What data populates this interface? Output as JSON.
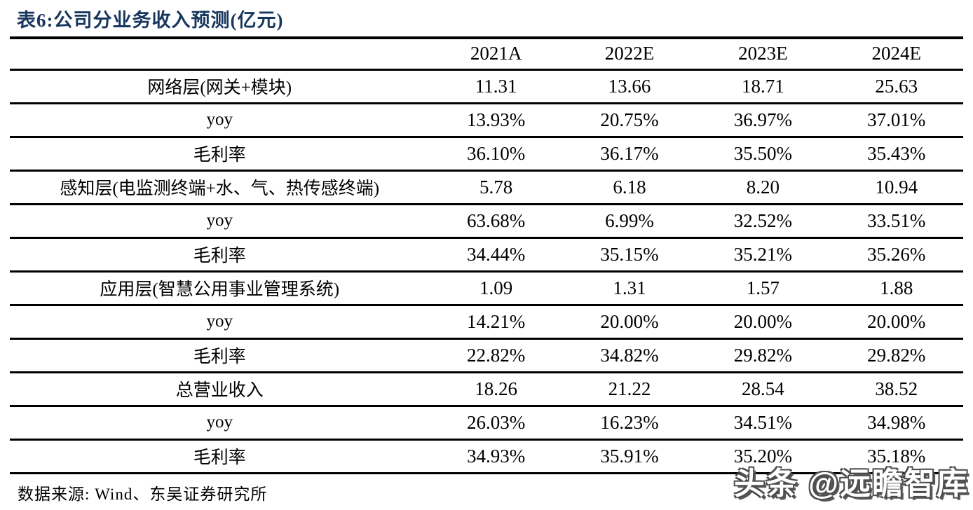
{
  "title": "表6:公司分业务收入预测(亿元)",
  "source": "数据来源: Wind、东吴证券研究所",
  "watermark": "头条 @远瞻智库",
  "colors": {
    "title_navy": "#17375E",
    "rule_black": "#000000",
    "text_black": "#000000",
    "background": "#FFFFFF",
    "watermark_fill": "#FFFFFF",
    "watermark_outline": "#4D4D4D"
  },
  "table": {
    "columns": [
      "",
      "2021A",
      "2022E",
      "2023E",
      "2024E"
    ],
    "rows": [
      {
        "label": "网络层(网关+模块)",
        "values": [
          "11.31",
          "13.66",
          "18.71",
          "25.63"
        ]
      },
      {
        "label": "yoy",
        "values": [
          "13.93%",
          "20.75%",
          "36.97%",
          "37.01%"
        ]
      },
      {
        "label": "毛利率",
        "values": [
          "36.10%",
          "36.17%",
          "35.50%",
          "35.43%"
        ]
      },
      {
        "label": "感知层(电监测终端+水、气、热传感终端)",
        "values": [
          "5.78",
          "6.18",
          "8.20",
          "10.94"
        ]
      },
      {
        "label": "yoy",
        "values": [
          "63.68%",
          "6.99%",
          "32.52%",
          "33.51%"
        ]
      },
      {
        "label": "毛利率",
        "values": [
          "34.44%",
          "35.15%",
          "35.21%",
          "35.26%"
        ]
      },
      {
        "label": "应用层(智慧公用事业管理系统)",
        "values": [
          "1.09",
          "1.31",
          "1.57",
          "1.88"
        ]
      },
      {
        "label": "yoy",
        "values": [
          "14.21%",
          "20.00%",
          "20.00%",
          "20.00%"
        ]
      },
      {
        "label": "毛利率",
        "values": [
          "22.82%",
          "34.82%",
          "29.82%",
          "29.82%"
        ]
      },
      {
        "label": "总营业收入",
        "values": [
          "18.26",
          "21.22",
          "28.54",
          "38.52"
        ]
      },
      {
        "label": "yoy",
        "values": [
          "26.03%",
          "16.23%",
          "34.51%",
          "34.98%"
        ]
      },
      {
        "label": "毛利率",
        "values": [
          "34.93%",
          "35.91%",
          "35.20%",
          "35.18%"
        ]
      }
    ]
  }
}
